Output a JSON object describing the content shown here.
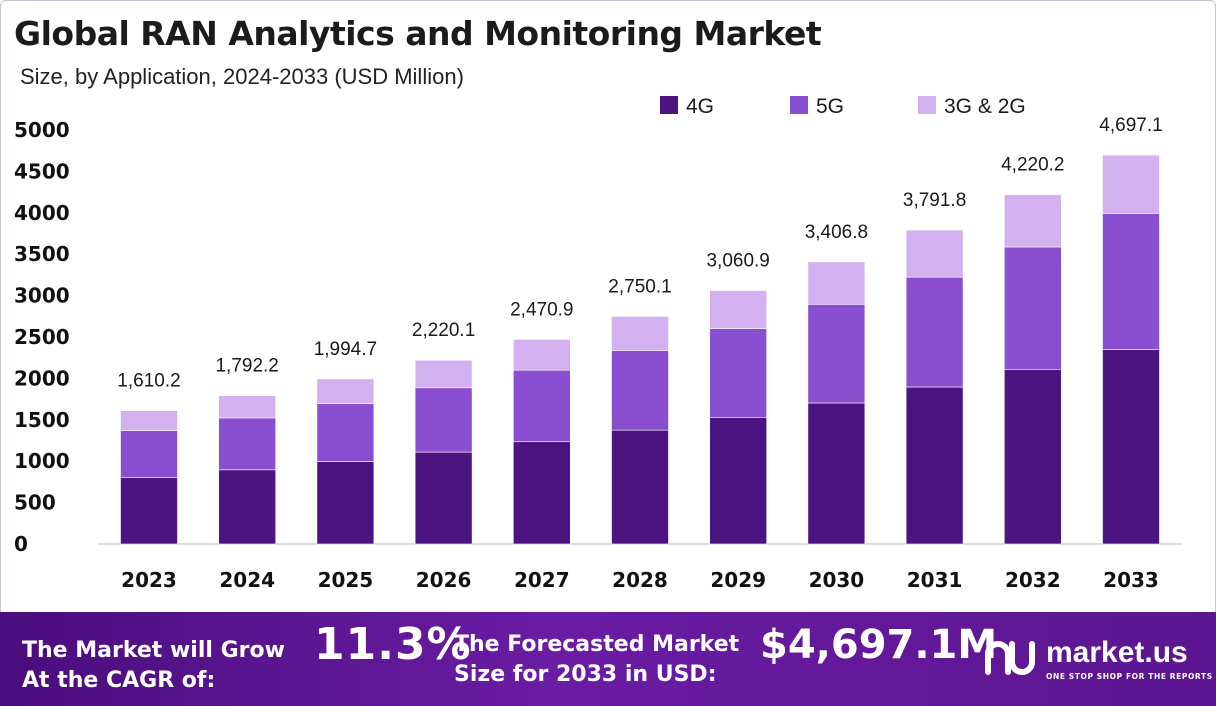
{
  "header": {
    "title": "Global RAN Analytics and Monitoring Market",
    "subtitle": "Size, by Application, 2024-2033 (USD Million)"
  },
  "chart_data": {
    "type": "bar",
    "stacked": true,
    "categories": [
      "2023",
      "2024",
      "2025",
      "2026",
      "2027",
      "2028",
      "2029",
      "2030",
      "2031",
      "2032",
      "2033"
    ],
    "series": [
      {
        "name": "4G",
        "color": "#4b1480",
        "values": [
          805,
          896,
          997,
          1110,
          1235,
          1375,
          1530,
          1703,
          1896,
          2110,
          2349
        ]
      },
      {
        "name": "5G",
        "color": "#8a4fd0",
        "values": [
          564,
          627,
          698,
          777,
          865,
          963,
          1071,
          1192,
          1327,
          1477,
          1644
        ]
      },
      {
        "name": "3G & 2G",
        "color": "#d3b0ef",
        "values": [
          241.2,
          269.2,
          299.7,
          333.1,
          370.9,
          412.1,
          459.9,
          511.8,
          568.8,
          633.2,
          704.1
        ]
      }
    ],
    "totals_labels": [
      "1,610.2",
      "1,792.2",
      "1,994.7",
      "2,220.1",
      "2,470.9",
      "2,750.1",
      "3,060.9",
      "3,406.8",
      "3,791.8",
      "4,220.2",
      "4,697.1"
    ],
    "ylim": [
      0,
      5000
    ],
    "yticks": [
      0,
      500,
      1000,
      1500,
      2000,
      2500,
      3000,
      3500,
      4000,
      4500,
      5000
    ],
    "legend_position": "top-right",
    "xlabel": "",
    "ylabel": ""
  },
  "footer": {
    "cagr_label": "The Market will Grow At the CAGR of:",
    "cagr_value": "11.3%",
    "forecast_label": "The Forecasted Market Size for 2033 in USD:",
    "forecast_value": "$4,697.1M",
    "brand_name": "market.us",
    "brand_tagline": "ONE STOP SHOP FOR THE REPORTS"
  }
}
